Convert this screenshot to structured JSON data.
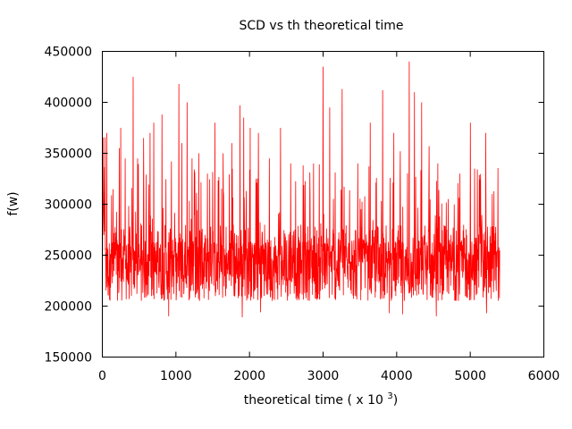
{
  "chart_data": {
    "type": "line",
    "title": "SCD vs th theoretical time",
    "xlabel_main": "theoretical time ( x 10 ",
    "xlabel_exp": "3",
    "xlabel_close": ")",
    "ylabel": "f(w)",
    "xlim": [
      0,
      6000
    ],
    "ylim": [
      150000,
      450000
    ],
    "x_ticks": [
      "0",
      "1000",
      "2000",
      "3000",
      "4000",
      "5000",
      "6000"
    ],
    "y_ticks": [
      "150000",
      "200000",
      "250000",
      "300000",
      "350000",
      "400000",
      "450000"
    ],
    "grid": false,
    "legend": "none",
    "series": [
      {
        "color": "#ff0000",
        "x_range": [
          0,
          5400
        ],
        "points": 1600,
        "peaks": [
          [
            25,
            390000
          ],
          [
            60,
            370000
          ],
          [
            230,
            355000
          ],
          [
            250,
            375000
          ],
          [
            310,
            345000
          ],
          [
            420,
            425000
          ],
          [
            480,
            345000
          ],
          [
            560,
            365000
          ],
          [
            650,
            370000
          ],
          [
            700,
            380000
          ],
          [
            810,
            388000
          ],
          [
            900,
            350000
          ],
          [
            940,
            342000
          ],
          [
            1040,
            418000
          ],
          [
            1080,
            360000
          ],
          [
            1150,
            400000
          ],
          [
            1220,
            345000
          ],
          [
            1310,
            350000
          ],
          [
            1430,
            330000
          ],
          [
            1530,
            380000
          ],
          [
            1640,
            350000
          ],
          [
            1760,
            360000
          ],
          [
            1870,
            397000
          ],
          [
            1920,
            385000
          ],
          [
            2010,
            375000
          ],
          [
            2120,
            370000
          ],
          [
            2270,
            345000
          ],
          [
            2420,
            375000
          ],
          [
            2560,
            340000
          ],
          [
            2730,
            338000
          ],
          [
            2870,
            340000
          ],
          [
            3000,
            435000
          ],
          [
            3090,
            395000
          ],
          [
            3260,
            413000
          ],
          [
            3470,
            340000
          ],
          [
            3640,
            380000
          ],
          [
            3810,
            412000
          ],
          [
            3960,
            370000
          ],
          [
            4050,
            352000
          ],
          [
            4170,
            440000
          ],
          [
            4240,
            410000
          ],
          [
            4340,
            400000
          ],
          [
            4440,
            357000
          ],
          [
            4560,
            340000
          ],
          [
            4700,
            305000
          ],
          [
            4860,
            330000
          ],
          [
            5000,
            380000
          ],
          [
            5060,
            335000
          ],
          [
            5210,
            370000
          ],
          [
            5300,
            310000
          ]
        ],
        "troughs": [
          [
            900,
            190000
          ],
          [
            1900,
            189000
          ],
          [
            2150,
            194000
          ],
          [
            3900,
            193000
          ],
          [
            4080,
            192000
          ],
          [
            4540,
            190000
          ],
          [
            5220,
            193000
          ]
        ],
        "baseline_mean": 235000
      }
    ]
  }
}
